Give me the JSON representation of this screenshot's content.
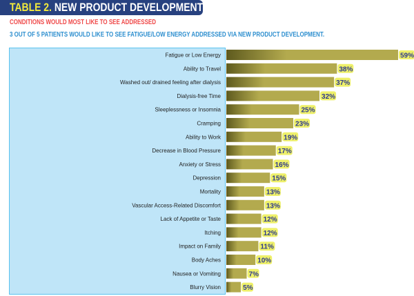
{
  "header": {
    "title_prefix": "TABLE 2.",
    "title_main": "NEW PRODUCT DEVELOPMENT",
    "subtitle": "CONDITIONS WOULD MOST LIKE TO SEE ADDRESSED",
    "note": "3 OUT OF 5 PATIENTS WOULD LIKE TO SEE FATIGUE/LOW ENERGY ADDRESSED VIA NEW PRODUCT DEVELOPMENT."
  },
  "chart_data": {
    "type": "bar",
    "orientation": "horizontal",
    "categories": [
      "Fatigue or Low Energy",
      "Ability to Travel",
      "Washed out/ drained feeling after dialysis",
      "Dialysis-free Time",
      "Sleeplessness or Insomnia",
      "Cramping",
      "Ability to Work",
      "Decrease in Blood Pressure",
      "Anxiety or Stress",
      "Depression",
      "Mortality",
      "Vascular Access-Related Discomfort",
      "Lack of Appetite or Taste",
      "Itching",
      "Impact on Family",
      "Body Aches",
      "Nausea or Vomiting",
      "Blurry Vision"
    ],
    "values": [
      59,
      38,
      37,
      32,
      25,
      23,
      19,
      17,
      16,
      15,
      13,
      13,
      12,
      12,
      11,
      10,
      7,
      5
    ],
    "data_labels": [
      "59%",
      "38%",
      "37%",
      "32%",
      "25%",
      "23%",
      "19%",
      "17%",
      "16%",
      "15%",
      "13%",
      "13%",
      "12%",
      "12%",
      "11%",
      "10%",
      "7%",
      "5%"
    ],
    "unit": "%",
    "grid": false,
    "colors": {
      "bar_dark": "#5e5a1e",
      "bar_light": "#b3aa4e",
      "label_bg": "#eef06a",
      "label_text": "#2e3a8c",
      "panel": "#bfe5f8"
    }
  }
}
